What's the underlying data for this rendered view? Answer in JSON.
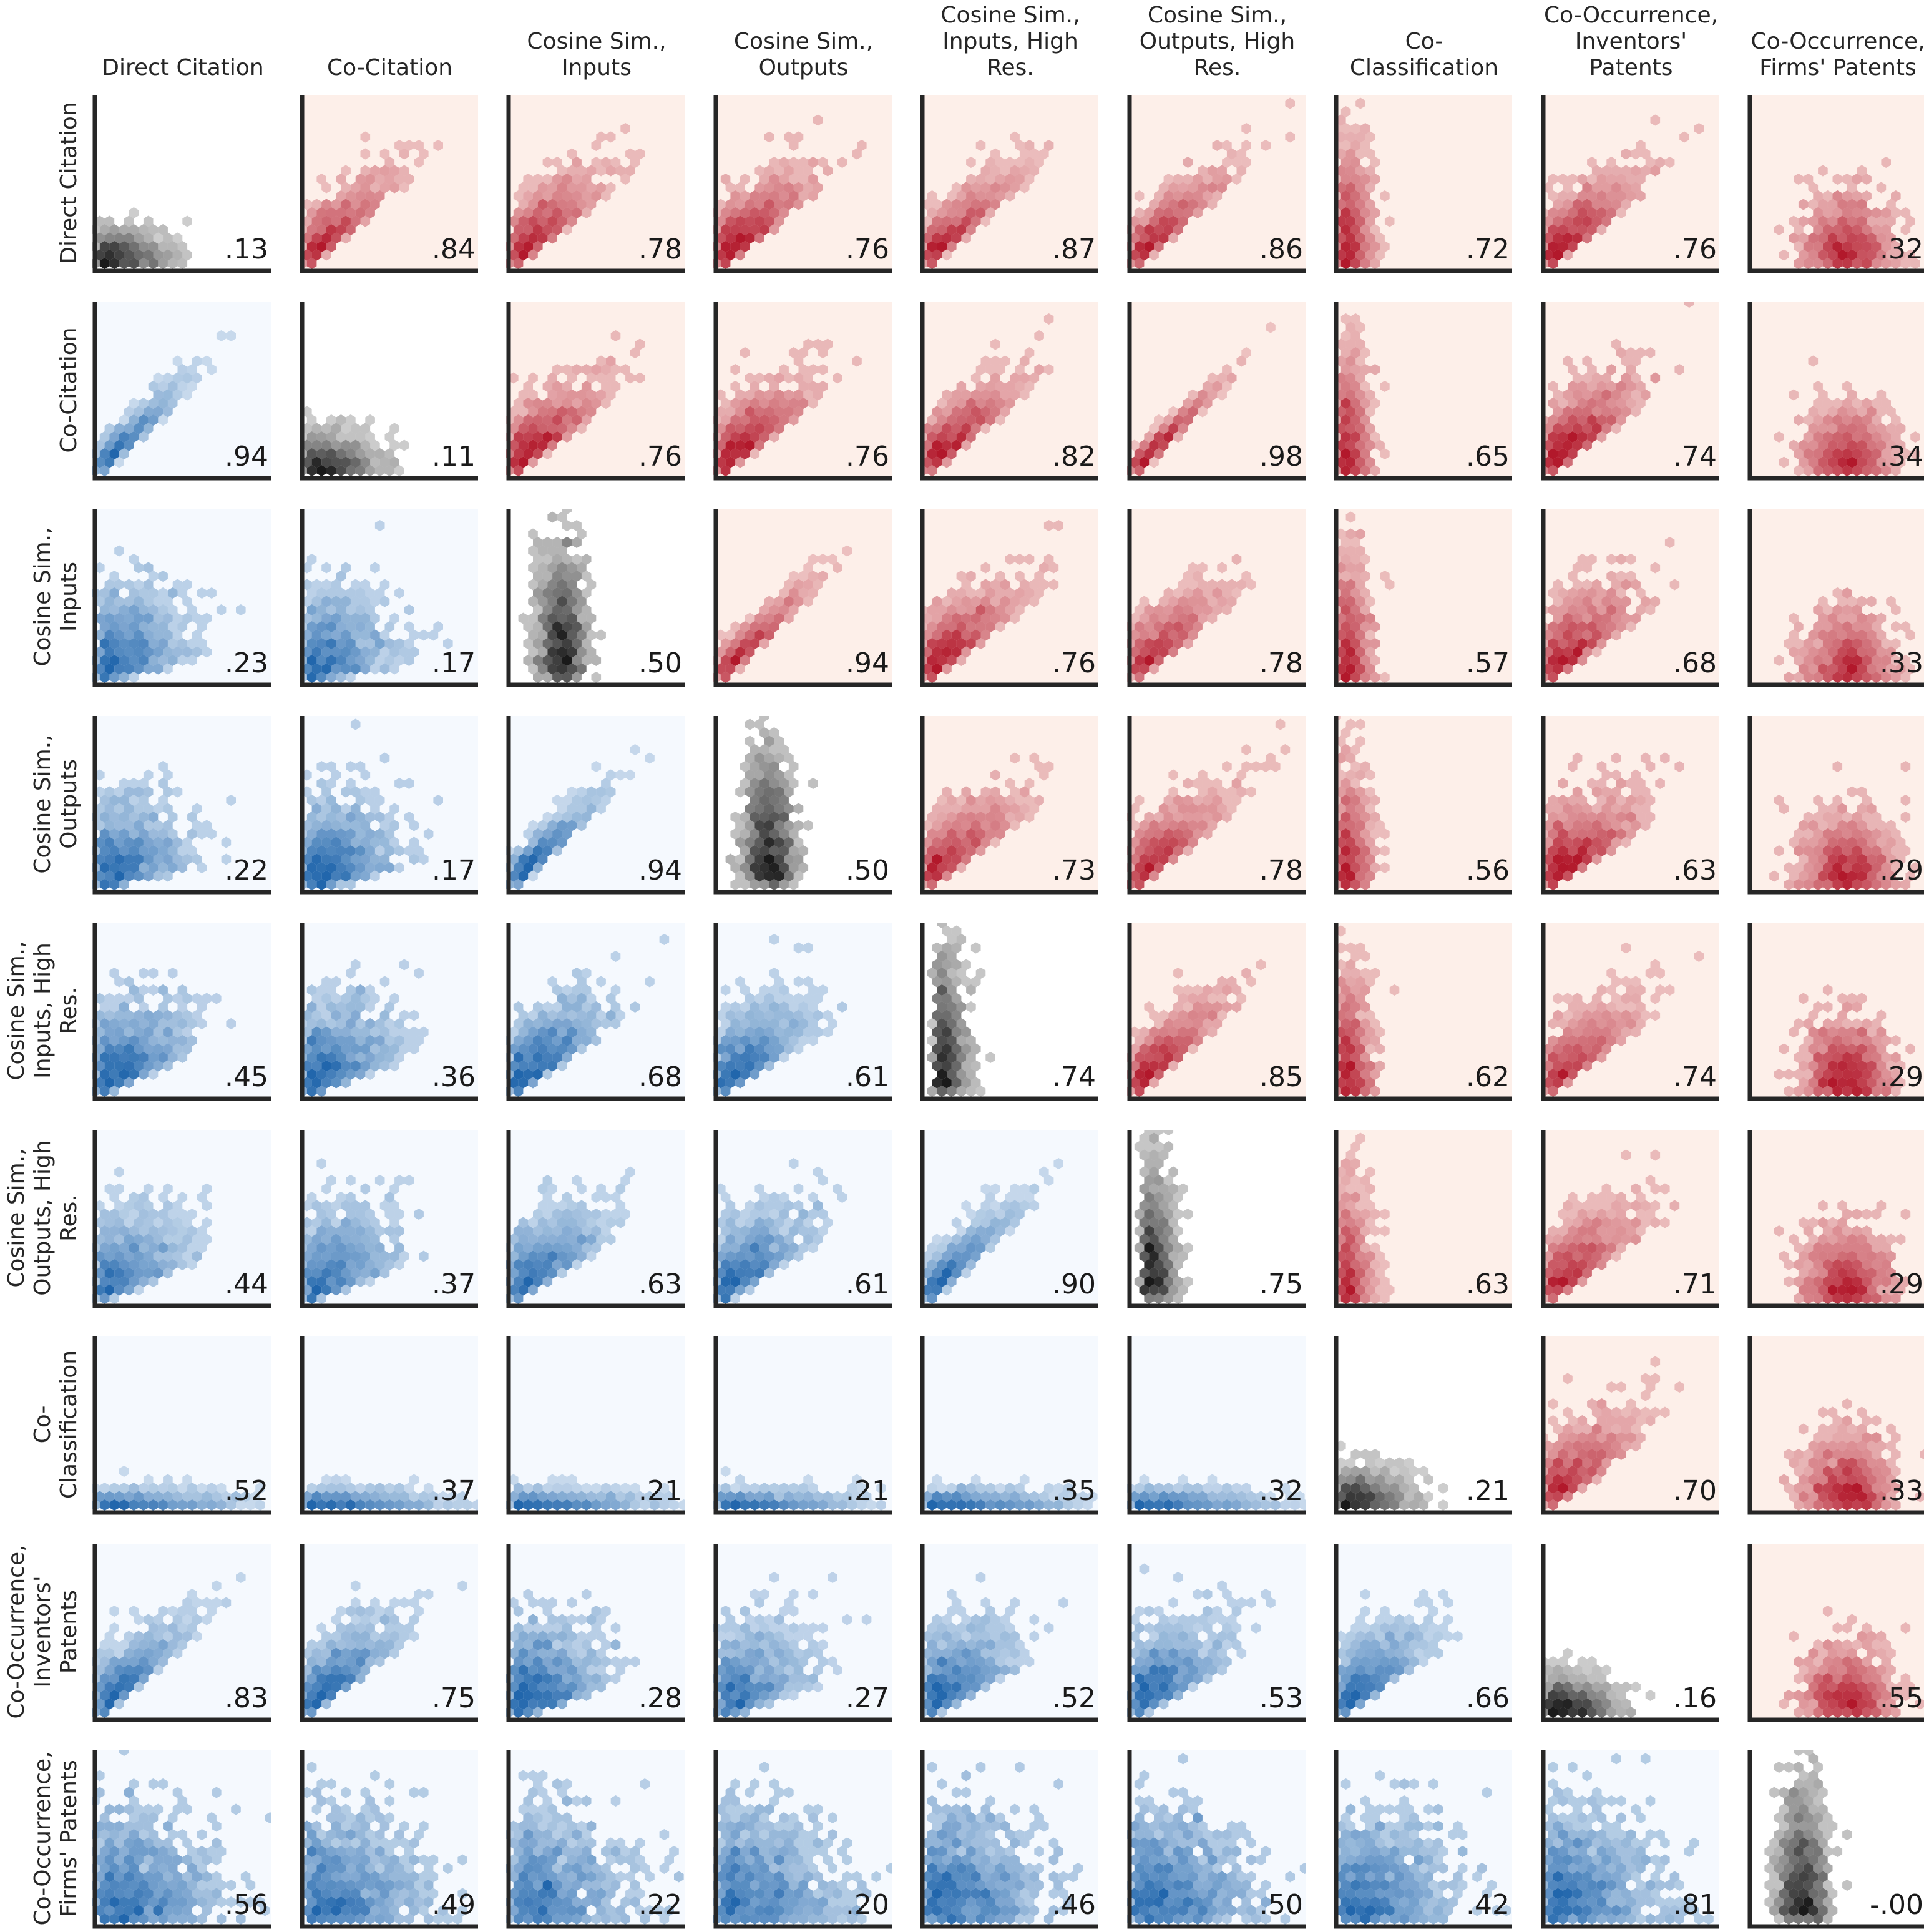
{
  "variables": [
    "Direct Citation",
    "Co-Citation",
    "Cosine Sim.,\nInputs",
    "Cosine Sim.,\nOutputs",
    "Cosine Sim.,\nInputs, High\nRes.",
    "Cosine Sim.,\nOutputs, High\nRes.",
    "Co-\nClassification",
    "Co-Occurrence,\nInventors'\nPatents",
    "Co-Occurrence,\nFirms' Patents"
  ],
  "colors": {
    "upper": "#b2182b",
    "upper_bg": "#fdefe9",
    "lower": "#2166ac",
    "lower_bg": "#f5f9fe",
    "diagonal": "#1a1a1a",
    "axis": "#262626"
  },
  "chart_data": {
    "type": "heatmap",
    "variant": "hexbin scatterplot matrix",
    "upper_triangle_colormap": "Reds",
    "lower_triangle_colormap": "Blues",
    "diagonal_colormap": "Greys",
    "labels": [
      ".13",
      ".84",
      ".78",
      ".76",
      ".87",
      ".86",
      ".72",
      ".76",
      ".32",
      ".94",
      ".11",
      ".76",
      ".76",
      ".82",
      ".98",
      ".65",
      ".74",
      ".34",
      ".23",
      ".17",
      ".50",
      ".94",
      ".76",
      ".78",
      ".57",
      ".68",
      ".33",
      ".22",
      ".17",
      ".94",
      ".50",
      ".73",
      ".78",
      ".56",
      ".63",
      ".29",
      ".45",
      ".36",
      ".68",
      ".61",
      ".74",
      ".85",
      ".62",
      ".74",
      ".29",
      ".44",
      ".37",
      ".63",
      ".61",
      ".90",
      ".75",
      ".63",
      ".71",
      ".29",
      ".52",
      ".37",
      ".21",
      ".21",
      ".35",
      ".32",
      ".21",
      ".70",
      ".33",
      ".83",
      ".75",
      ".28",
      ".27",
      ".52",
      ".53",
      ".66",
      ".16",
      ".55",
      ".56",
      ".49",
      ".22",
      ".20",
      ".46",
      ".50",
      ".42",
      ".81",
      "-.00"
    ],
    "values": [
      [
        0.13,
        0.84,
        0.78,
        0.76,
        0.87,
        0.86,
        0.72,
        0.76,
        0.32
      ],
      [
        0.94,
        0.11,
        0.76,
        0.76,
        0.82,
        0.98,
        0.65,
        0.74,
        0.34
      ],
      [
        0.23,
        0.17,
        0.5,
        0.94,
        0.76,
        0.78,
        0.57,
        0.68,
        0.33
      ],
      [
        0.22,
        0.17,
        0.94,
        0.5,
        0.73,
        0.78,
        0.56,
        0.63,
        0.29
      ],
      [
        0.45,
        0.36,
        0.68,
        0.61,
        0.74,
        0.85,
        0.62,
        0.74,
        0.29
      ],
      [
        0.44,
        0.37,
        0.63,
        0.61,
        0.9,
        0.75,
        0.63,
        0.71,
        0.29
      ],
      [
        0.52,
        0.37,
        0.21,
        0.21,
        0.35,
        0.32,
        0.21,
        0.7,
        0.33
      ],
      [
        0.83,
        0.75,
        0.28,
        0.27,
        0.52,
        0.53,
        0.66,
        0.16,
        0.55
      ],
      [
        0.56,
        0.49,
        0.22,
        0.2,
        0.46,
        0.5,
        0.42,
        0.81,
        -0.0
      ]
    ]
  }
}
